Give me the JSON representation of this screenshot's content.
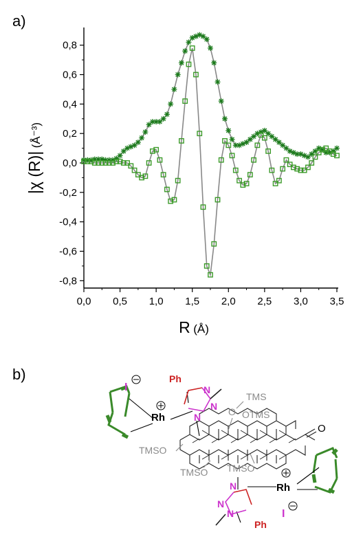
{
  "figure": {
    "panel_a_label": "a)",
    "panel_b_label": "b)"
  },
  "chart_data": {
    "type": "line",
    "xlabel_main": "R",
    "xlabel_unit": "(Å)",
    "ylabel_main": "|χ (R)|",
    "ylabel_unit": "(Å⁻³)",
    "xlim": [
      0.0,
      3.5
    ],
    "ylim": [
      -0.85,
      0.92
    ],
    "xticks": [
      "0,0",
      "0,5",
      "1,0",
      "1,5",
      "2,0",
      "2,5",
      "3,0",
      "3,5"
    ],
    "xtick_values": [
      0.0,
      0.5,
      1.0,
      1.5,
      2.0,
      2.5,
      3.0,
      3.5
    ],
    "yticks": [
      "0,8",
      "0,6",
      "0,4",
      "0,2",
      "0,0",
      "-0,2",
      "-0,4",
      "-0,6",
      "-0,8"
    ],
    "ytick_values": [
      0.8,
      0.6,
      0.4,
      0.2,
      0.0,
      -0.2,
      -0.4,
      -0.6,
      -0.8
    ],
    "grid": false,
    "colors": {
      "magnitude": "#1a7a1a",
      "imaginary": "#3c9a2a",
      "fit": "#888888"
    },
    "series": [
      {
        "marker": "asterisk",
        "x": [
          0.0,
          0.05,
          0.1,
          0.15,
          0.2,
          0.25,
          0.3,
          0.35,
          0.4,
          0.45,
          0.5,
          0.55,
          0.6,
          0.65,
          0.7,
          0.75,
          0.8,
          0.85,
          0.9,
          0.95,
          1.0,
          1.05,
          1.1,
          1.15,
          1.2,
          1.25,
          1.3,
          1.35,
          1.4,
          1.45,
          1.5,
          1.55,
          1.6,
          1.65,
          1.7,
          1.75,
          1.8,
          1.85,
          1.9,
          1.95,
          2.0,
          2.05,
          2.1,
          2.15,
          2.2,
          2.25,
          2.3,
          2.35,
          2.4,
          2.45,
          2.5,
          2.55,
          2.6,
          2.65,
          2.7,
          2.75,
          2.8,
          2.85,
          2.9,
          2.95,
          3.0,
          3.05,
          3.1,
          3.15,
          3.2,
          3.25,
          3.3,
          3.35,
          3.4,
          3.45,
          3.5
        ],
        "y": [
          0.02,
          0.02,
          0.02,
          0.025,
          0.025,
          0.025,
          0.02,
          0.02,
          0.02,
          0.03,
          0.05,
          0.08,
          0.1,
          0.11,
          0.12,
          0.14,
          0.17,
          0.21,
          0.26,
          0.28,
          0.28,
          0.28,
          0.3,
          0.33,
          0.4,
          0.5,
          0.6,
          0.68,
          0.76,
          0.82,
          0.85,
          0.86,
          0.87,
          0.86,
          0.84,
          0.78,
          0.68,
          0.55,
          0.42,
          0.3,
          0.22,
          0.16,
          0.12,
          0.12,
          0.13,
          0.14,
          0.16,
          0.18,
          0.2,
          0.21,
          0.22,
          0.2,
          0.18,
          0.16,
          0.14,
          0.12,
          0.1,
          0.08,
          0.07,
          0.06,
          0.06,
          0.05,
          0.04,
          0.06,
          0.08,
          0.1,
          0.09,
          0.07,
          0.07,
          0.08,
          0.1
        ]
      },
      {
        "marker": "square",
        "x": [
          0.0,
          0.05,
          0.1,
          0.15,
          0.2,
          0.25,
          0.3,
          0.35,
          0.4,
          0.45,
          0.5,
          0.55,
          0.6,
          0.65,
          0.7,
          0.75,
          0.8,
          0.85,
          0.9,
          0.95,
          1.0,
          1.05,
          1.1,
          1.15,
          1.2,
          1.25,
          1.3,
          1.35,
          1.4,
          1.45,
          1.5,
          1.55,
          1.6,
          1.65,
          1.7,
          1.75,
          1.8,
          1.85,
          1.9,
          1.95,
          2.0,
          2.05,
          2.1,
          2.15,
          2.2,
          2.25,
          2.3,
          2.35,
          2.4,
          2.45,
          2.5,
          2.55,
          2.6,
          2.65,
          2.7,
          2.75,
          2.8,
          2.85,
          2.9,
          2.95,
          3.0,
          3.05,
          3.1,
          3.15,
          3.2,
          3.25,
          3.3,
          3.35,
          3.4,
          3.45,
          3.5
        ],
        "y": [
          0.01,
          0.01,
          0.01,
          0.0,
          0.0,
          0.0,
          0.0,
          0.0,
          0.0,
          0.01,
          0.01,
          0.0,
          0.0,
          -0.02,
          -0.05,
          -0.08,
          -0.1,
          -0.09,
          0.0,
          0.08,
          0.09,
          0.02,
          -0.08,
          -0.18,
          -0.26,
          -0.25,
          -0.12,
          0.15,
          0.42,
          0.67,
          0.78,
          0.6,
          0.2,
          -0.3,
          -0.7,
          -0.76,
          -0.55,
          -0.25,
          0.02,
          0.15,
          0.12,
          0.05,
          -0.05,
          -0.12,
          -0.15,
          -0.14,
          -0.08,
          0.02,
          0.12,
          0.19,
          0.17,
          0.08,
          -0.05,
          -0.14,
          -0.12,
          -0.04,
          0.02,
          -0.01,
          -0.03,
          -0.04,
          -0.05,
          -0.05,
          -0.03,
          0.0,
          0.04,
          0.07,
          0.09,
          0.1,
          0.08,
          0.06,
          0.05
        ]
      }
    ]
  },
  "molecule": {
    "counter_ion_1": "I",
    "counter_ion_2": "I",
    "phenyl_1": "Ph",
    "phenyl_2": "Ph",
    "metal_1": "Rh",
    "metal_2": "Rh",
    "nitrogen_labels": [
      "N",
      "N",
      "N",
      "N",
      "N",
      "N"
    ],
    "ketone_oxygen": "O",
    "tms_1": "TMS",
    "otms_1": "OTMS",
    "tmso_1": "TMSO",
    "tmso_2": "TMSO",
    "tmso_3": "TMSO",
    "oxygen_1": "O"
  }
}
